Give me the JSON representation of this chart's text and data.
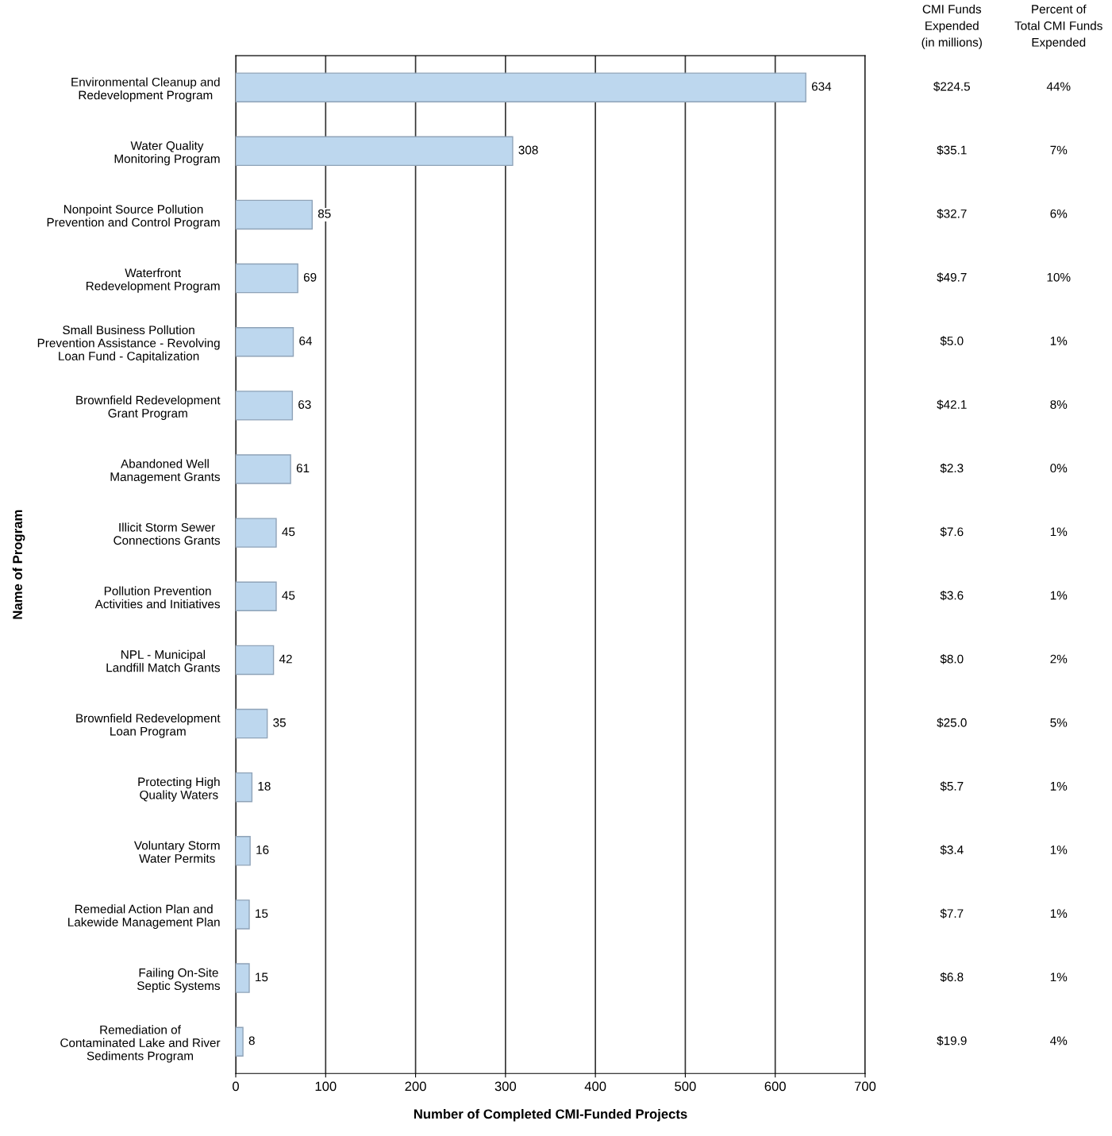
{
  "chart_data": {
    "type": "bar",
    "orientation": "horizontal",
    "xlabel": "Number of Completed CMI-Funded Projects",
    "ylabel": "Name of Program",
    "categories": [
      "Environmental Cleanup and\nRedevelopment Program",
      "Water Quality\nMonitoring Program",
      "Nonpoint Source Pollution\nPrevention and Control Program",
      "Waterfront\nRedevelopment Program",
      "Small Business Pollution\nPrevention Assistance - Revolving\nLoan Fund - Capitalization",
      "Brownfield Redevelopment\nGrant Program",
      "Abandoned Well\nManagement Grants",
      "Illicit Storm Sewer\nConnections Grants",
      "Pollution Prevention\nActivities and Initiatives",
      "NPL - Municipal\nLandfill Match Grants",
      "Brownfield Redevelopment\nLoan Program",
      "Protecting High\nQuality Waters",
      "Voluntary Storm\nWater Permits",
      "Remedial Action Plan and\nLakewide Management Plan",
      "Failing On-Site\nSeptic Systems",
      "Remediation of\nContaminated Lake and River\nSediments Program"
    ],
    "values": [
      634,
      308,
      85,
      69,
      64,
      63,
      61,
      45,
      45,
      42,
      35,
      18,
      16,
      15,
      15,
      8
    ],
    "color": "#bdd7ee",
    "data_labels": true,
    "xlim": [
      0,
      700
    ],
    "xticks": [
      0,
      100,
      200,
      300,
      400,
      500,
      600,
      700
    ],
    "grid": "x",
    "legend": false,
    "annotations": [
      "CMI Funds\nExpended\n(in millions)",
      "Percent of\nTotal CMI Funds\nExpended",
      "$224.5",
      "44%",
      "$35.1",
      "7%",
      "$32.7",
      "6%",
      "$49.7",
      "10%",
      "$5.0",
      "1%",
      "$42.1",
      "8%",
      "$2.3",
      "0%",
      "$7.6",
      "1%",
      "$3.6",
      "1%",
      "$8.0",
      "2%",
      "$25.0",
      "5%",
      "$5.7",
      "1%",
      "$3.4",
      "1%",
      "$7.7",
      "1%",
      "$6.8",
      "1%",
      "$19.9",
      "4%"
    ]
  }
}
